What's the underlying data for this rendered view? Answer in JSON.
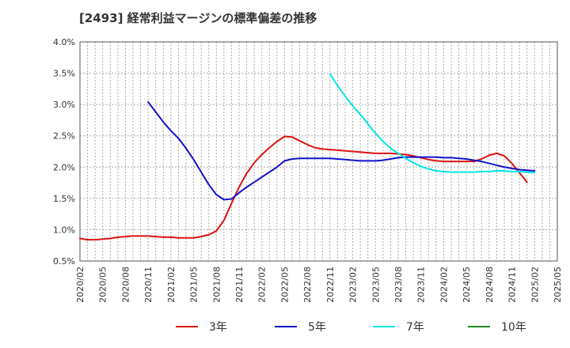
{
  "chart_data": {
    "type": "line",
    "title": "[2493]  経常利益マージンの標準偏差の推移",
    "xlabel": "",
    "ylabel": "",
    "x_tick_labels": [
      "2020/02",
      "2020/05",
      "2020/08",
      "2020/11",
      "2021/02",
      "2021/05",
      "2021/08",
      "2021/11",
      "2022/02",
      "2022/05",
      "2022/08",
      "2022/11",
      "2023/02",
      "2023/05",
      "2023/08",
      "2023/11",
      "2024/02",
      "2024/05",
      "2024/08",
      "2024/11",
      "2025/02",
      "2025/05"
    ],
    "y_tick_labels": [
      "0.5%",
      "1.0%",
      "1.5%",
      "2.0%",
      "2.5%",
      "3.0%",
      "3.5%",
      "4.0%"
    ],
    "ylim": [
      0.5,
      4.0
    ],
    "xlim": [
      "2020/02",
      "2025/05"
    ],
    "grid": true,
    "legend_position": "bottom",
    "series": [
      {
        "name": "3年",
        "color": "#dd1111",
        "points": [
          [
            "2020/02",
            0.86
          ],
          [
            "2020/03",
            0.84
          ],
          [
            "2020/04",
            0.84
          ],
          [
            "2020/05",
            0.85
          ],
          [
            "2020/06",
            0.86
          ],
          [
            "2020/07",
            0.88
          ],
          [
            "2020/08",
            0.89
          ],
          [
            "2020/09",
            0.9
          ],
          [
            "2020/10",
            0.9
          ],
          [
            "2020/11",
            0.9
          ],
          [
            "2020/12",
            0.89
          ],
          [
            "2021/01",
            0.88
          ],
          [
            "2021/02",
            0.88
          ],
          [
            "2021/03",
            0.87
          ],
          [
            "2021/04",
            0.87
          ],
          [
            "2021/05",
            0.87
          ],
          [
            "2021/06",
            0.89
          ],
          [
            "2021/07",
            0.92
          ],
          [
            "2021/08",
            0.98
          ],
          [
            "2021/09",
            1.15
          ],
          [
            "2021/10",
            1.42
          ],
          [
            "2021/11",
            1.68
          ],
          [
            "2021/12",
            1.9
          ],
          [
            "2022/01",
            2.07
          ],
          [
            "2022/02",
            2.2
          ],
          [
            "2022/03",
            2.31
          ],
          [
            "2022/04",
            2.41
          ],
          [
            "2022/05",
            2.49
          ],
          [
            "2022/06",
            2.48
          ],
          [
            "2022/07",
            2.42
          ],
          [
            "2022/08",
            2.36
          ],
          [
            "2022/09",
            2.31
          ],
          [
            "2022/10",
            2.29
          ],
          [
            "2022/11",
            2.28
          ],
          [
            "2022/12",
            2.27
          ],
          [
            "2023/01",
            2.26
          ],
          [
            "2023/02",
            2.25
          ],
          [
            "2023/03",
            2.24
          ],
          [
            "2023/04",
            2.23
          ],
          [
            "2023/05",
            2.22
          ],
          [
            "2023/06",
            2.22
          ],
          [
            "2023/07",
            2.22
          ],
          [
            "2023/08",
            2.21
          ],
          [
            "2023/09",
            2.2
          ],
          [
            "2023/10",
            2.18
          ],
          [
            "2023/11",
            2.15
          ],
          [
            "2023/12",
            2.12
          ],
          [
            "2024/01",
            2.1
          ],
          [
            "2024/02",
            2.09
          ],
          [
            "2024/03",
            2.09
          ],
          [
            "2024/04",
            2.09
          ],
          [
            "2024/05",
            2.09
          ],
          [
            "2024/06",
            2.09
          ],
          [
            "2024/07",
            2.13
          ],
          [
            "2024/08",
            2.19
          ],
          [
            "2024/09",
            2.22
          ],
          [
            "2024/10",
            2.18
          ],
          [
            "2024/11",
            2.06
          ],
          [
            "2024/12",
            1.91
          ],
          [
            "2025/01",
            1.76
          ]
        ]
      },
      {
        "name": "5年",
        "color": "#1111cc",
        "points": [
          [
            "2020/11",
            3.04
          ],
          [
            "2020/12",
            2.88
          ],
          [
            "2021/01",
            2.72
          ],
          [
            "2021/02",
            2.58
          ],
          [
            "2021/03",
            2.46
          ],
          [
            "2021/04",
            2.3
          ],
          [
            "2021/05",
            2.12
          ],
          [
            "2021/06",
            1.92
          ],
          [
            "2021/07",
            1.72
          ],
          [
            "2021/08",
            1.56
          ],
          [
            "2021/09",
            1.48
          ],
          [
            "2021/10",
            1.49
          ],
          [
            "2021/11",
            1.59
          ],
          [
            "2021/12",
            1.68
          ],
          [
            "2022/01",
            1.76
          ],
          [
            "2022/02",
            1.84
          ],
          [
            "2022/03",
            1.92
          ],
          [
            "2022/04",
            2.0
          ],
          [
            "2022/05",
            2.1
          ],
          [
            "2022/06",
            2.13
          ],
          [
            "2022/07",
            2.14
          ],
          [
            "2022/08",
            2.14
          ],
          [
            "2022/09",
            2.14
          ],
          [
            "2022/10",
            2.14
          ],
          [
            "2022/11",
            2.14
          ],
          [
            "2022/12",
            2.13
          ],
          [
            "2023/01",
            2.12
          ],
          [
            "2023/02",
            2.11
          ],
          [
            "2023/03",
            2.1
          ],
          [
            "2023/04",
            2.1
          ],
          [
            "2023/05",
            2.1
          ],
          [
            "2023/06",
            2.11
          ],
          [
            "2023/07",
            2.13
          ],
          [
            "2023/08",
            2.15
          ],
          [
            "2023/09",
            2.16
          ],
          [
            "2023/10",
            2.16
          ],
          [
            "2023/11",
            2.16
          ],
          [
            "2023/12",
            2.16
          ],
          [
            "2024/01",
            2.16
          ],
          [
            "2024/02",
            2.15
          ],
          [
            "2024/03",
            2.15
          ],
          [
            "2024/04",
            2.14
          ],
          [
            "2024/05",
            2.13
          ],
          [
            "2024/06",
            2.11
          ],
          [
            "2024/07",
            2.09
          ],
          [
            "2024/08",
            2.06
          ],
          [
            "2024/09",
            2.03
          ],
          [
            "2024/10",
            2.0
          ],
          [
            "2024/11",
            1.98
          ],
          [
            "2024/12",
            1.96
          ],
          [
            "2025/01",
            1.95
          ],
          [
            "2025/02",
            1.94
          ]
        ]
      },
      {
        "name": "7年",
        "color": "#00e5e5",
        "points": [
          [
            "2022/11",
            3.49
          ],
          [
            "2022/12",
            3.3
          ],
          [
            "2023/01",
            3.13
          ],
          [
            "2023/02",
            2.98
          ],
          [
            "2023/03",
            2.84
          ],
          [
            "2023/04",
            2.69
          ],
          [
            "2023/05",
            2.54
          ],
          [
            "2023/06",
            2.41
          ],
          [
            "2023/07",
            2.3
          ],
          [
            "2023/08",
            2.22
          ],
          [
            "2023/09",
            2.14
          ],
          [
            "2023/10",
            2.07
          ],
          [
            "2023/11",
            2.01
          ],
          [
            "2023/12",
            1.97
          ],
          [
            "2024/01",
            1.94
          ],
          [
            "2024/02",
            1.93
          ],
          [
            "2024/03",
            1.92
          ],
          [
            "2024/04",
            1.92
          ],
          [
            "2024/05",
            1.92
          ],
          [
            "2024/06",
            1.92
          ],
          [
            "2024/07",
            1.93
          ],
          [
            "2024/08",
            1.93
          ],
          [
            "2024/09",
            1.94
          ],
          [
            "2024/10",
            1.94
          ],
          [
            "2024/11",
            1.93
          ],
          [
            "2024/12",
            1.93
          ],
          [
            "2025/01",
            1.92
          ],
          [
            "2025/02",
            1.91
          ]
        ]
      },
      {
        "name": "10年",
        "color": "#228822",
        "points": []
      }
    ]
  }
}
